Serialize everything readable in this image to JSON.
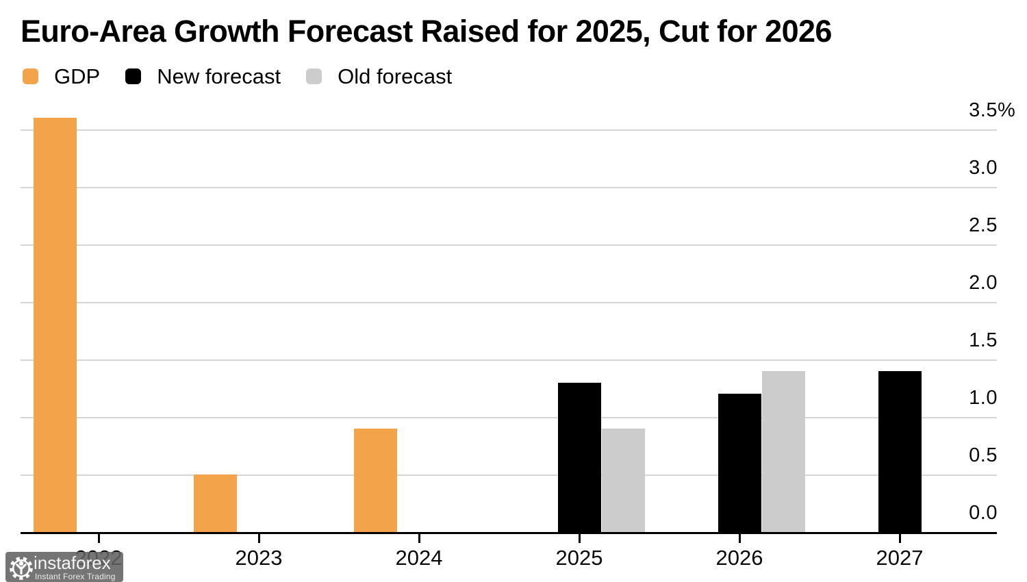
{
  "title": "Euro-Area Growth Forecast Raised for 2025, Cut for 2026",
  "chart_data": {
    "type": "bar",
    "title": "Euro-Area Growth Forecast Raised for 2025, Cut for 2026",
    "categories": [
      "2022",
      "2023",
      "2024",
      "2025",
      "2026",
      "2027"
    ],
    "series": [
      {
        "name": "GDP",
        "color": "#F3A44A",
        "values": [
          3.6,
          0.5,
          0.9,
          null,
          null,
          null
        ]
      },
      {
        "name": "New forecast",
        "color": "#000000",
        "values": [
          null,
          null,
          null,
          1.3,
          1.2,
          1.4
        ]
      },
      {
        "name": "Old forecast",
        "color": "#CCCCCC",
        "values": [
          null,
          null,
          null,
          0.9,
          1.4,
          null
        ]
      }
    ],
    "unit": "%",
    "y_ticks": [
      {
        "value": 3.5,
        "label": "3.5",
        "suffix": "%"
      },
      {
        "value": 3.0,
        "label": "3.0",
        "suffix": ""
      },
      {
        "value": 2.5,
        "label": "2.5",
        "suffix": ""
      },
      {
        "value": 2.0,
        "label": "2.0",
        "suffix": ""
      },
      {
        "value": 1.5,
        "label": "1.5",
        "suffix": ""
      },
      {
        "value": 1.0,
        "label": "1.0",
        "suffix": ""
      },
      {
        "value": 0.5,
        "label": "0.5",
        "suffix": ""
      },
      {
        "value": 0.0,
        "label": "0.0",
        "suffix": ""
      }
    ],
    "ylim": [
      0,
      3.6
    ],
    "grid": "horizontal",
    "legend_position": "top-left",
    "gridline_color": "#D6D6D6",
    "axis_color": "#000000"
  },
  "watermark": {
    "brand": "instaforex",
    "tagline": "Instant Forex Trading"
  }
}
